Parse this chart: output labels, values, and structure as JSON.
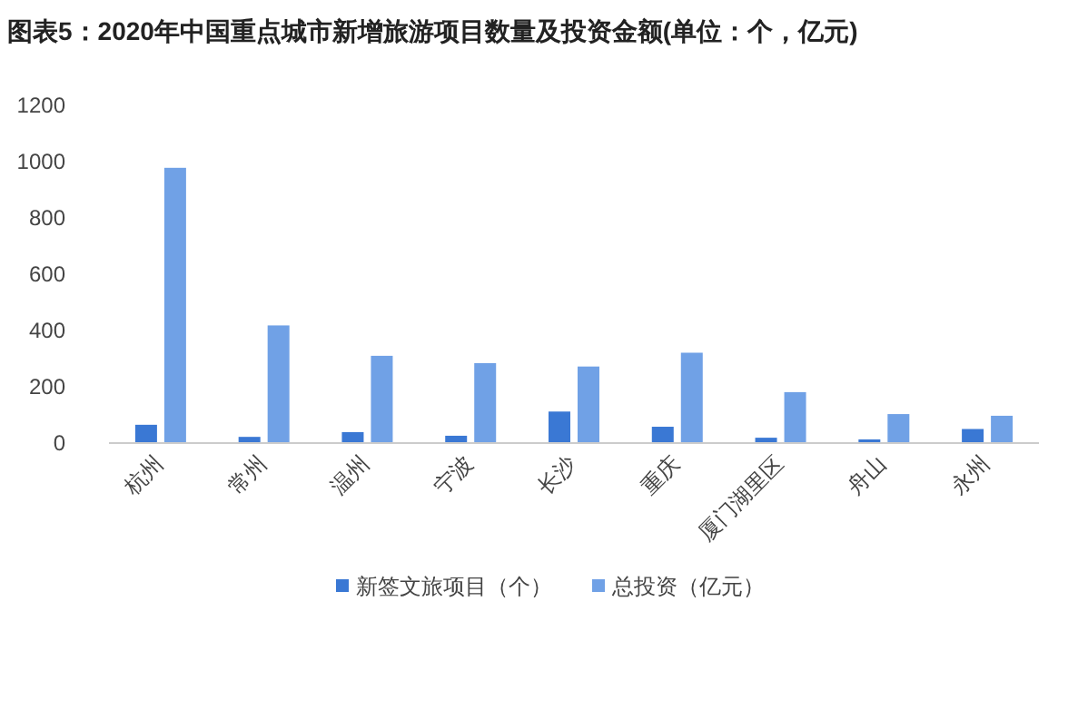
{
  "chart_data": {
    "type": "bar",
    "title": "图表5：2020年中国重点城市新增旅游项目数量及投资金额(单位：个，亿元)",
    "categories": [
      "杭州",
      "常州",
      "温州",
      "宁波",
      "长沙",
      "重庆",
      "厦门湖里区",
      "舟山",
      "永州"
    ],
    "series": [
      {
        "name": "新签文旅项目（个）",
        "color": "#3a78d4",
        "values": [
          65,
          22,
          39,
          26,
          112,
          58,
          19,
          13,
          50
        ]
      },
      {
        "name": "总投资（亿元）",
        "color": "#70a1e6",
        "values": [
          978,
          418,
          310,
          284,
          272,
          321,
          181,
          103,
          97
        ]
      }
    ],
    "ylim": [
      0,
      1200
    ],
    "yticks": [
      0,
      200,
      400,
      600,
      800,
      1000,
      1200
    ],
    "grid": false,
    "legend": "bottom"
  }
}
